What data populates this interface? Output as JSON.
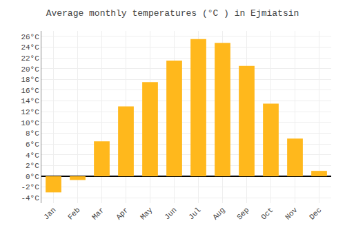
{
  "chart_data": {
    "type": "bar",
    "title": "Average monthly temperatures (°C ) in Ejmiatsin",
    "categories": [
      "Jan",
      "Feb",
      "Mar",
      "Apr",
      "May",
      "Jun",
      "Jul",
      "Aug",
      "Sep",
      "Oct",
      "Nov",
      "Dec"
    ],
    "values": [
      -3.0,
      -0.7,
      6.5,
      13.0,
      17.5,
      21.5,
      25.5,
      24.8,
      20.5,
      13.5,
      7.0,
      1.0
    ],
    "color": "#FFB81C",
    "ylim": [
      -5,
      27
    ],
    "yticks": [
      {
        "value": -4,
        "label": "-4°C"
      },
      {
        "value": -2,
        "label": "-2°C"
      },
      {
        "value": 0,
        "label": "0°C"
      },
      {
        "value": 2,
        "label": "2°C"
      },
      {
        "value": 4,
        "label": "4°C"
      },
      {
        "value": 6,
        "label": "6°C"
      },
      {
        "value": 8,
        "label": "8°C"
      },
      {
        "value": 10,
        "label": "10°C"
      },
      {
        "value": 12,
        "label": "12°C"
      },
      {
        "value": 14,
        "label": "14°C"
      },
      {
        "value": 16,
        "label": "16°C"
      },
      {
        "value": 18,
        "label": "18°C"
      },
      {
        "value": 20,
        "label": "20°C"
      },
      {
        "value": 22,
        "label": "22°C"
      },
      {
        "value": 24,
        "label": "24°C"
      },
      {
        "value": 26,
        "label": "26°C"
      }
    ],
    "grid": true
  }
}
